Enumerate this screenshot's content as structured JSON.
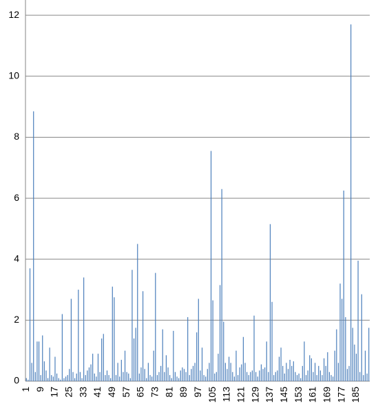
{
  "chart_data": {
    "type": "bar",
    "categories": [
      "1",
      null,
      null,
      null,
      null,
      null,
      null,
      null,
      "9",
      null,
      null,
      null,
      null,
      null,
      null,
      null,
      "17",
      null,
      null,
      null,
      null,
      null,
      null,
      null,
      "25",
      null,
      null,
      null,
      null,
      null,
      null,
      null,
      "33",
      null,
      null,
      null,
      null,
      null,
      null,
      null,
      "41",
      null,
      null,
      null,
      null,
      null,
      null,
      null,
      "49",
      null,
      null,
      null,
      null,
      null,
      null,
      null,
      "57",
      null,
      null,
      null,
      null,
      null,
      null,
      null,
      "65",
      null,
      null,
      null,
      null,
      null,
      null,
      null,
      "73",
      null,
      null,
      null,
      null,
      null,
      null,
      null,
      "81",
      null,
      null,
      null,
      null,
      null,
      null,
      null,
      "89",
      null,
      null,
      null,
      null,
      null,
      null,
      null,
      "97",
      null,
      null,
      null,
      null,
      null,
      null,
      null,
      "105",
      null,
      null,
      null,
      null,
      null,
      null,
      null,
      "113",
      null,
      null,
      null,
      null,
      null,
      null,
      null,
      "121",
      null,
      null,
      null,
      null,
      null,
      null,
      null,
      "129",
      null,
      null,
      null,
      null,
      null,
      null,
      null,
      "137",
      null,
      null,
      null,
      null,
      null,
      null,
      null,
      "145",
      null,
      null,
      null,
      null,
      null,
      null,
      null,
      "153",
      null,
      null,
      null,
      null,
      null,
      null,
      null,
      "161",
      null,
      null,
      null,
      null,
      null,
      null,
      null,
      "169",
      null,
      null,
      null,
      null,
      null,
      null,
      null,
      "177",
      null,
      null,
      null,
      null,
      null,
      null,
      null,
      "185",
      null,
      null,
      null,
      null,
      null,
      null,
      null
    ],
    "values": [
      0.1,
      0.05,
      3.7,
      0.6,
      8.85,
      0.3,
      1.3,
      1.3,
      0.2,
      1.5,
      0.65,
      0.35,
      0.1,
      1.1,
      0.2,
      0.15,
      0.8,
      0.25,
      0.1,
      0.05,
      2.2,
      0.1,
      0.15,
      0.2,
      0.4,
      2.7,
      0.3,
      0.1,
      0.25,
      3.0,
      0.3,
      0.1,
      3.4,
      0.2,
      0.35,
      0.45,
      0.55,
      0.9,
      0.25,
      0.15,
      0.9,
      0.3,
      1.4,
      1.55,
      0.2,
      0.35,
      0.2,
      0.1,
      3.1,
      2.75,
      0.2,
      0.6,
      0.15,
      0.7,
      0.3,
      1.0,
      0.3,
      0.25,
      0.1,
      3.65,
      1.4,
      1.75,
      4.5,
      0.25,
      0.45,
      2.95,
      0.4,
      0.1,
      0.6,
      0.2,
      0.15,
      1.0,
      3.55,
      0.2,
      0.3,
      0.5,
      1.7,
      0.3,
      0.85,
      0.45,
      0.2,
      0.1,
      1.65,
      0.3,
      0.15,
      0.1,
      0.35,
      0.45,
      0.4,
      0.3,
      2.1,
      0.2,
      0.4,
      0.5,
      0.6,
      1.6,
      2.7,
      0.35,
      1.1,
      0.2,
      0.15,
      0.4,
      0.6,
      7.55,
      2.65,
      0.25,
      0.3,
      0.9,
      3.15,
      6.3,
      1.95,
      0.6,
      0.4,
      0.8,
      0.6,
      0.3,
      0.15,
      1.0,
      0.2,
      0.45,
      0.55,
      1.45,
      0.6,
      0.3,
      0.2,
      0.3,
      0.35,
      2.15,
      0.3,
      0.15,
      0.35,
      0.55,
      0.4,
      0.45,
      1.3,
      0.3,
      5.15,
      2.6,
      0.2,
      0.3,
      0.35,
      0.8,
      1.1,
      0.5,
      0.25,
      0.6,
      0.4,
      0.7,
      0.5,
      0.65,
      0.3,
      0.2,
      0.25,
      0.1,
      0.5,
      1.3,
      0.2,
      0.35,
      0.85,
      0.75,
      0.3,
      0.6,
      0.2,
      0.5,
      0.35,
      0.2,
      0.75,
      0.5,
      0.95,
      0.3,
      0.2,
      0.15,
      1.0,
      1.7,
      0.6,
      3.2,
      2.7,
      6.25,
      2.1,
      0.4,
      0.5,
      11.7,
      1.75,
      1.2,
      0.9,
      3.95,
      0.3,
      2.85,
      0.2,
      1.0,
      0.25,
      1.75
    ],
    "color": "#4a7ebb",
    "ylim": [
      0,
      12.5
    ],
    "yticks": [
      0,
      2,
      4,
      6,
      8,
      10,
      12
    ],
    "grid": true
  }
}
